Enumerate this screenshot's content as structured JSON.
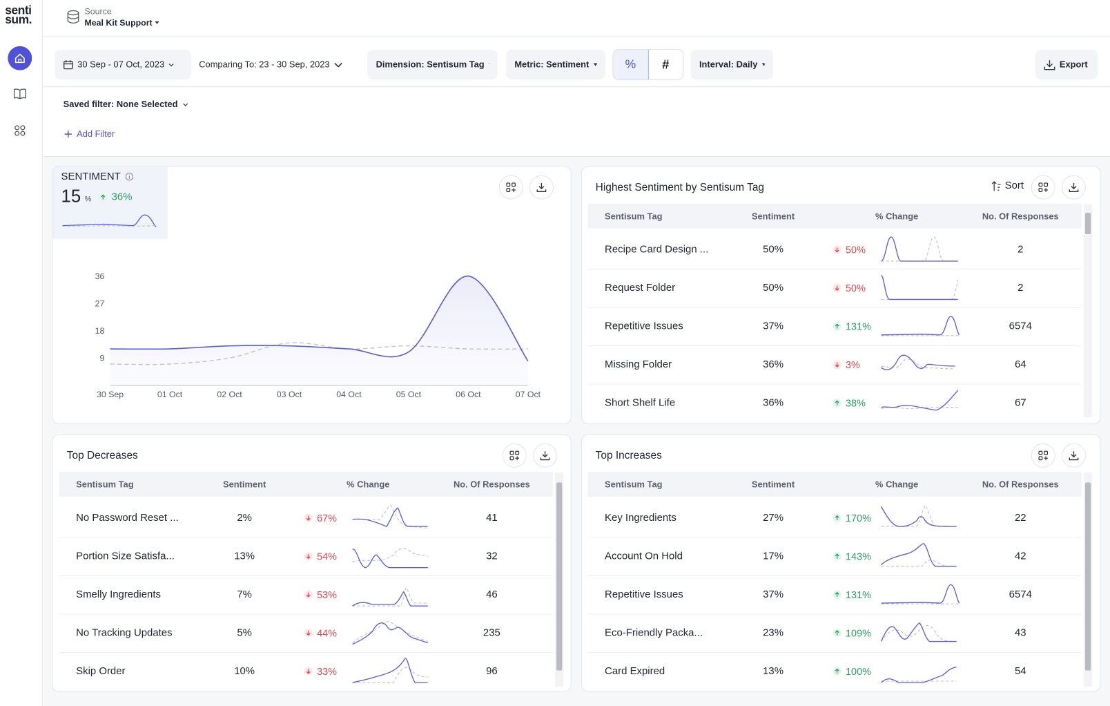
{
  "brand": {
    "logo_top": "senti",
    "logo_bottom": "sum."
  },
  "source": {
    "label": "Source",
    "name": "Meal Kit Support"
  },
  "toolbar": {
    "date_range": "30 Sep - 07 Oct, 2023",
    "comparing": "Comparing To: 23 - 30 Sep, 2023",
    "dimension": "Dimension: Sentisum Tag",
    "metric": "Metric: Sentiment",
    "percent": "%",
    "hash": "#",
    "interval": "Interval: Daily",
    "export": "Export"
  },
  "filters": {
    "saved": "Saved filter: None Selected",
    "add": "Add Filter"
  },
  "sentiment_card": {
    "title": "SENTIMENT",
    "value": "15",
    "unit": "%",
    "change": "36%"
  },
  "chart_data": {
    "type": "line",
    "categories": [
      "30 Sep",
      "01 Oct",
      "02 Oct",
      "03 Oct",
      "04 Oct",
      "05 Oct",
      "06 Oct",
      "07 Oct"
    ],
    "series": [
      {
        "color": "#5b5fd6",
        "values": [
          12,
          12,
          13,
          13,
          12,
          11,
          36,
          8
        ]
      },
      {
        "color": "#c6c6cc",
        "dashed": true,
        "values": [
          7,
          7,
          9,
          14,
          12,
          13,
          12,
          12
        ]
      }
    ],
    "ylim": [
      0,
      40
    ],
    "yticks": [
      9,
      18,
      27,
      36
    ],
    "grid": false
  },
  "tables": [
    {
      "title": "Highest Sentiment by Sentisum Tag",
      "sort": "Sort",
      "columns": [
        "Sentisum Tag",
        "Sentiment",
        "% Change",
        "No. Of Responses"
      ],
      "rows": [
        {
          "tag": "Recipe Card Design ...",
          "sentiment": "50%",
          "change": "50%",
          "direction": "down",
          "responses": "2"
        },
        {
          "tag": "Request Folder",
          "sentiment": "50%",
          "change": "50%",
          "direction": "down",
          "responses": "2"
        },
        {
          "tag": "Repetitive Issues",
          "sentiment": "37%",
          "change": "131%",
          "direction": "up",
          "responses": "6574"
        },
        {
          "tag": "Missing Folder",
          "sentiment": "36%",
          "change": "3%",
          "direction": "down",
          "responses": "64"
        },
        {
          "tag": "Short Shelf Life",
          "sentiment": "36%",
          "change": "38%",
          "direction": "up",
          "responses": "67"
        }
      ]
    },
    {
      "title": "Top Decreases",
      "columns": [
        "Sentisum Tag",
        "Sentiment",
        "% Change",
        "No. Of Responses"
      ],
      "rows": [
        {
          "tag": "No Password Reset ...",
          "sentiment": "2%",
          "change": "67%",
          "direction": "down",
          "responses": "41"
        },
        {
          "tag": "Portion Size Satisfa...",
          "sentiment": "13%",
          "change": "54%",
          "direction": "down",
          "responses": "32"
        },
        {
          "tag": "Smelly Ingredients",
          "sentiment": "7%",
          "change": "53%",
          "direction": "down",
          "responses": "46"
        },
        {
          "tag": "No Tracking Updates",
          "sentiment": "5%",
          "change": "44%",
          "direction": "down",
          "responses": "235"
        },
        {
          "tag": "Skip Order",
          "sentiment": "10%",
          "change": "33%",
          "direction": "down",
          "responses": "96"
        }
      ]
    },
    {
      "title": "Top Increases",
      "columns": [
        "Sentisum Tag",
        "Sentiment",
        "% Change",
        "No. Of Responses"
      ],
      "rows": [
        {
          "tag": "Key Ingredients",
          "sentiment": "27%",
          "change": "170%",
          "direction": "up",
          "responses": "22"
        },
        {
          "tag": "Account On Hold",
          "sentiment": "17%",
          "change": "143%",
          "direction": "up",
          "responses": "42"
        },
        {
          "tag": "Repetitive Issues",
          "sentiment": "37%",
          "change": "131%",
          "direction": "up",
          "responses": "6574"
        },
        {
          "tag": "Eco-Friendly Packa...",
          "sentiment": "23%",
          "change": "109%",
          "direction": "up",
          "responses": "43"
        },
        {
          "tag": "Card Expired",
          "sentiment": "13%",
          "change": "100%",
          "direction": "up",
          "responses": "54"
        }
      ]
    }
  ]
}
